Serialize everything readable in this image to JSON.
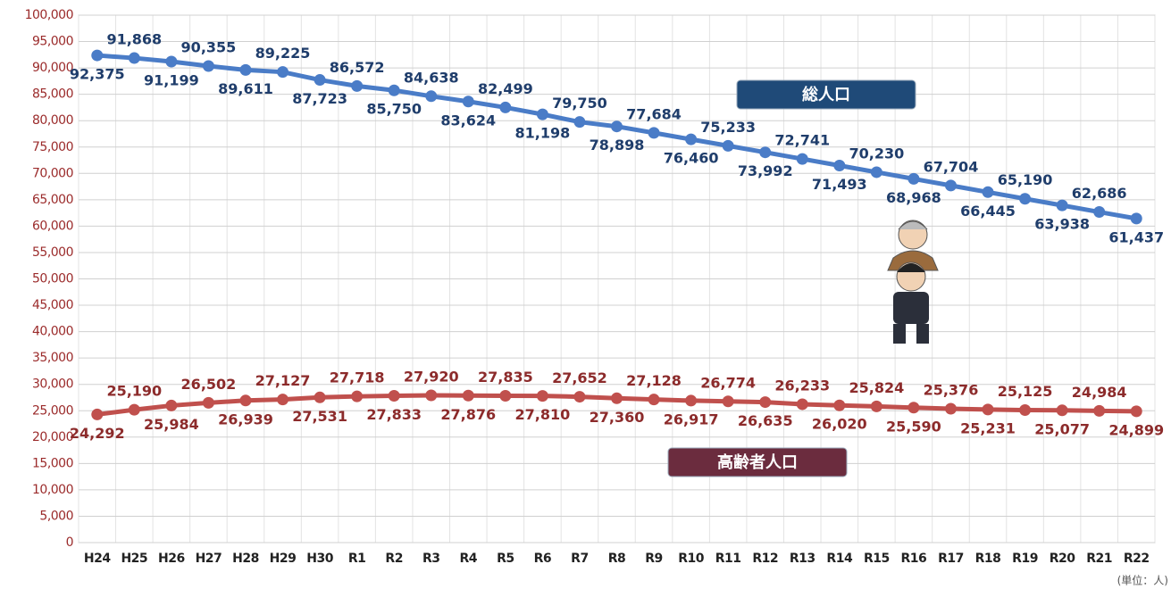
{
  "chart_data": {
    "type": "line",
    "categories": [
      "H24",
      "H25",
      "H26",
      "H27",
      "H28",
      "H29",
      "H30",
      "R1",
      "R2",
      "R3",
      "R4",
      "R5",
      "R6",
      "R7",
      "R8",
      "R9",
      "R10",
      "R11",
      "R12",
      "R13",
      "R14",
      "R15",
      "R16",
      "R17",
      "R18",
      "R19",
      "R20",
      "R21",
      "R22"
    ],
    "series": [
      {
        "name": "総人口",
        "color": "#4a7cc7",
        "label_color": "#1f3d6b",
        "box_color": "#1f4a78",
        "values": [
          92375,
          91868,
          91199,
          90355,
          89611,
          89225,
          87723,
          86572,
          85750,
          84638,
          83624,
          82499,
          81198,
          79750,
          78898,
          77684,
          76460,
          75233,
          73992,
          72741,
          71493,
          70230,
          68968,
          67704,
          66445,
          65190,
          63938,
          62686,
          61437
        ],
        "value_labels": [
          "92,375",
          "91,868",
          "91,199",
          "90,355",
          "89,611",
          "89,225",
          "87,723",
          "86,572",
          "85,750",
          "84,638",
          "83,624",
          "82,499",
          "81,198",
          "79,750",
          "78,898",
          "77,684",
          "76,460",
          "75,233",
          "73,992",
          "72,741",
          "71,493",
          "70,230",
          "68,968",
          "67,704",
          "66,445",
          "65,190",
          "63,938",
          "62,686",
          "61,437"
        ]
      },
      {
        "name": "高齢者人口",
        "color": "#c0504d",
        "label_color": "#8c2b2b",
        "box_color": "#6b2c3e",
        "values": [
          24292,
          25190,
          25984,
          26502,
          26939,
          27127,
          27531,
          27718,
          27833,
          27920,
          27876,
          27835,
          27810,
          27652,
          27360,
          27128,
          26917,
          26774,
          26635,
          26233,
          26020,
          25824,
          25590,
          25376,
          25231,
          25125,
          25077,
          24984,
          24899
        ],
        "value_labels": [
          "24,292",
          "25,190",
          "25,984",
          "26,502",
          "26,939",
          "27,127",
          "27,531",
          "27,718",
          "27,833",
          "27,920",
          "27,876",
          "27,835",
          "27,810",
          "27,652",
          "27,360",
          "27,128",
          "26,917",
          "26,774",
          "26,635",
          "26,233",
          "26,020",
          "25,824",
          "25,590",
          "25,376",
          "25,231",
          "25,125",
          "25,077",
          "24,984",
          "24,899"
        ]
      }
    ],
    "ylim": [
      0,
      100000
    ],
    "yticks": [
      0,
      {
        "value": 5000,
        "label": "5,000"
      },
      {
        "value": 10000,
        "label": "10,000"
      },
      {
        "value": 15000,
        "label": "15,000"
      },
      {
        "value": 20000,
        "label": "20,000"
      },
      {
        "value": 25000,
        "label": "25,000"
      },
      {
        "value": 30000,
        "label": "30,000"
      },
      {
        "value": 35000,
        "label": "35,000"
      },
      {
        "value": 40000,
        "label": "40,000"
      },
      {
        "value": 45000,
        "label": "45,000"
      },
      {
        "value": 50000,
        "label": "50,000"
      },
      {
        "value": 55000,
        "label": "55,000"
      },
      {
        "value": 60000,
        "label": "60,000"
      },
      {
        "value": 65000,
        "label": "65,000"
      },
      {
        "value": 70000,
        "label": "70,000"
      },
      {
        "value": 75000,
        "label": "75,000"
      },
      {
        "value": 80000,
        "label": "80,000"
      },
      {
        "value": 85000,
        "label": "85,000"
      },
      {
        "value": 90000,
        "label": "90,000"
      },
      {
        "value": 95000,
        "label": "95,000"
      },
      {
        "value": 100000,
        "label": "100,000"
      }
    ],
    "grid": true,
    "unit": "(単位：人)"
  }
}
